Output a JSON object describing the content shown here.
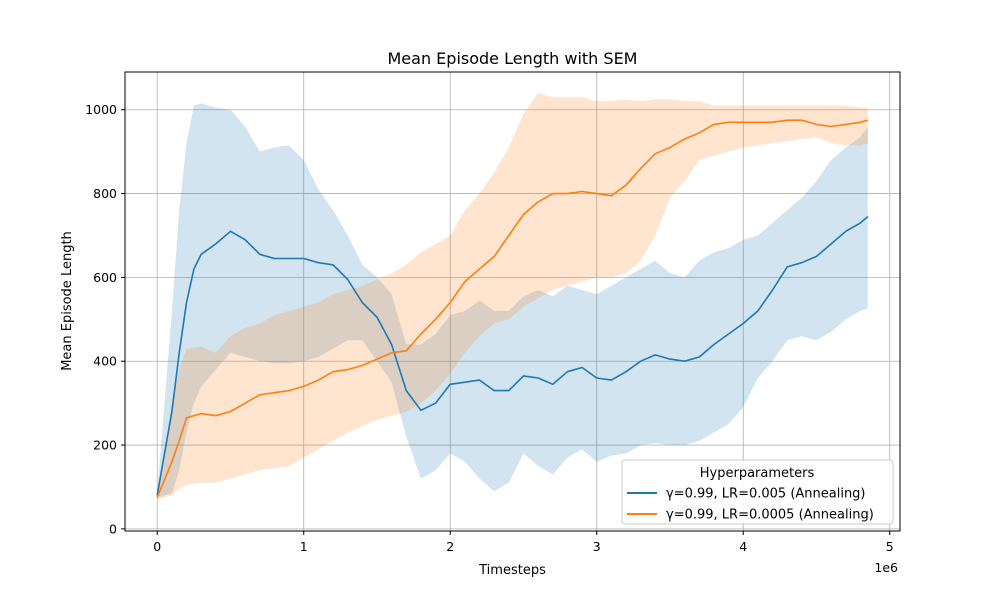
{
  "chart_data": {
    "type": "line",
    "title": "Mean Episode Length with SEM",
    "xlabel": "Timesteps",
    "ylabel": "Mean Episode Length",
    "x_offset_label": "1e6",
    "xlim": [
      -0.22,
      5.07
    ],
    "ylim": [
      -5,
      1090
    ],
    "xticks": [
      0,
      1,
      2,
      3,
      4,
      5
    ],
    "yticks": [
      0,
      200,
      400,
      600,
      800,
      1000
    ],
    "grid": true,
    "legend": {
      "title": "Hyperparameters",
      "placement": "lower right"
    },
    "series": [
      {
        "name": "γ=0.99, LR=0.005 (Annealing)",
        "color": "#1f77b4",
        "fill_color": "#1f77b4",
        "fill_opacity": 0.2,
        "x": [
          0,
          0.1,
          0.15,
          0.2,
          0.25,
          0.3,
          0.4,
          0.5,
          0.6,
          0.7,
          0.8,
          0.9,
          1.0,
          1.1,
          1.2,
          1.3,
          1.4,
          1.5,
          1.6,
          1.7,
          1.8,
          1.9,
          2.0,
          2.1,
          2.2,
          2.3,
          2.4,
          2.5,
          2.6,
          2.7,
          2.8,
          2.9,
          3.0,
          3.1,
          3.2,
          3.3,
          3.4,
          3.5,
          3.6,
          3.7,
          3.8,
          3.9,
          4.0,
          4.1,
          4.2,
          4.3,
          4.4,
          4.5,
          4.6,
          4.7,
          4.8,
          4.85
        ],
        "mean": [
          80,
          280,
          420,
          540,
          620,
          655,
          680,
          710,
          690,
          655,
          645,
          645,
          645,
          635,
          630,
          595,
          540,
          505,
          440,
          330,
          283,
          300,
          345,
          350,
          355,
          330,
          330,
          365,
          360,
          345,
          375,
          385,
          360,
          355,
          375,
          400,
          415,
          405,
          400,
          410,
          440,
          465,
          490,
          520,
          570,
          625,
          635,
          650,
          680,
          710,
          730,
          745
        ],
        "upper": [
          85,
          520,
          760,
          920,
          1010,
          1015,
          1005,
          1000,
          960,
          900,
          910,
          915,
          880,
          810,
          760,
          700,
          630,
          600,
          560,
          440,
          440,
          465,
          510,
          520,
          545,
          520,
          520,
          555,
          570,
          555,
          580,
          570,
          560,
          580,
          600,
          620,
          640,
          610,
          600,
          640,
          660,
          670,
          690,
          700,
          730,
          760,
          790,
          830,
          880,
          910,
          935,
          960
        ],
        "lower": [
          75,
          85,
          140,
          230,
          300,
          340,
          380,
          420,
          410,
          400,
          395,
          395,
          400,
          410,
          430,
          450,
          450,
          400,
          350,
          220,
          120,
          140,
          180,
          160,
          120,
          90,
          110,
          180,
          150,
          130,
          170,
          190,
          160,
          175,
          180,
          200,
          205,
          200,
          200,
          210,
          230,
          250,
          290,
          360,
          400,
          450,
          460,
          450,
          470,
          500,
          520,
          525
        ]
      },
      {
        "name": "γ=0.99, LR=0.0005 (Annealing)",
        "color": "#ff7f0e",
        "fill_color": "#ff7f0e",
        "fill_opacity": 0.2,
        "x": [
          0,
          0.1,
          0.15,
          0.2,
          0.3,
          0.4,
          0.5,
          0.6,
          0.7,
          0.8,
          0.9,
          1.0,
          1.1,
          1.2,
          1.3,
          1.4,
          1.5,
          1.6,
          1.7,
          1.8,
          1.9,
          2.0,
          2.1,
          2.2,
          2.3,
          2.4,
          2.5,
          2.6,
          2.7,
          2.8,
          2.9,
          3.0,
          3.1,
          3.2,
          3.3,
          3.4,
          3.5,
          3.6,
          3.7,
          3.8,
          3.9,
          4.0,
          4.1,
          4.2,
          4.3,
          4.4,
          4.5,
          4.6,
          4.7,
          4.8,
          4.85
        ],
        "mean": [
          75,
          160,
          210,
          265,
          275,
          270,
          280,
          300,
          320,
          325,
          330,
          340,
          355,
          375,
          380,
          390,
          405,
          420,
          425,
          465,
          500,
          540,
          590,
          620,
          650,
          700,
          750,
          780,
          800,
          800,
          805,
          800,
          795,
          820,
          860,
          895,
          910,
          930,
          945,
          965,
          970,
          970,
          970,
          970,
          975,
          975,
          965,
          960,
          965,
          970,
          975
        ],
        "upper": [
          80,
          300,
          380,
          430,
          435,
          420,
          460,
          480,
          490,
          510,
          520,
          530,
          540,
          560,
          570,
          580,
          595,
          610,
          630,
          660,
          680,
          700,
          760,
          800,
          850,
          910,
          990,
          1040,
          1030,
          1030,
          1030,
          1020,
          1020,
          1025,
          1020,
          1025,
          1025,
          1020,
          1020,
          1010,
          1010,
          1010,
          1010,
          1010,
          1010,
          1010,
          1010,
          1010,
          1010,
          1005,
          1005
        ],
        "lower": [
          70,
          80,
          95,
          105,
          110,
          110,
          120,
          130,
          140,
          145,
          150,
          170,
          190,
          210,
          230,
          245,
          260,
          270,
          280,
          300,
          330,
          370,
          420,
          460,
          490,
          500,
          530,
          550,
          570,
          580,
          590,
          600,
          600,
          610,
          640,
          700,
          790,
          830,
          880,
          890,
          900,
          910,
          915,
          920,
          925,
          930,
          935,
          920,
          915,
          915,
          920
        ]
      }
    ]
  }
}
